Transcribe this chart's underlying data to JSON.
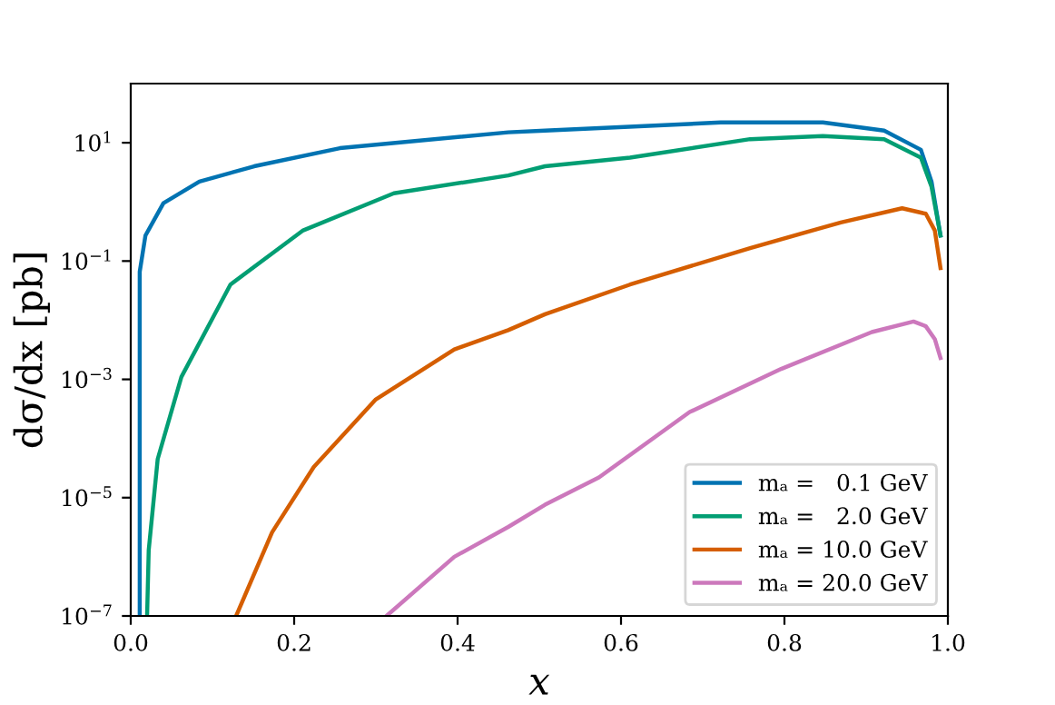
{
  "chart_data": {
    "type": "line",
    "xlabel": "x",
    "ylabel": "dσ/dx [pb]",
    "log": "y",
    "xlim": [
      0.0,
      1.0
    ],
    "xticks": [
      {
        "value": 0.0,
        "label": "0.0"
      },
      0.2,
      0.4,
      0.6,
      0.8,
      {
        "value": 1.0,
        "label": "1.0"
      }
    ],
    "ylim": [
      1e-07,
      100
    ],
    "yticks": [
      {
        "value": 1e-07,
        "label": "10$^{−7}$"
      },
      {
        "value": 1e-05,
        "label": "10$^{−5}$"
      },
      {
        "value": 0.001,
        "label": "10$^{−3}$"
      },
      {
        "value": 0.1,
        "label": "10$^{−1}$"
      },
      {
        "value": 10,
        "label": "10$^{1}$"
      }
    ],
    "grid": false,
    "legend": "bottom right",
    "marker": "none",
    "line_style": "solid",
    "series": [
      {
        "name": "mₐ =   0.1 GeV",
        "color": "#0173b2",
        "x": [
          0.011,
          0.011,
          0.018,
          0.04,
          0.084,
          0.151,
          0.256,
          0.462,
          0.507,
          0.722,
          0.847,
          0.922,
          0.967,
          0.98,
          0.991
        ],
        "values": [
          1e-07,
          0.066,
          0.27,
          0.95,
          2.2,
          4.0,
          8.1,
          15,
          16,
          22,
          22,
          16,
          7.6,
          2.2,
          0.27
        ]
      },
      {
        "name": "mₐ =   2.0 GeV",
        "color": "#029e73",
        "x": [
          0.02,
          0.022,
          0.033,
          0.062,
          0.122,
          0.211,
          0.322,
          0.462,
          0.507,
          0.611,
          0.758,
          0.847,
          0.922,
          0.967,
          0.98,
          0.991
        ],
        "values": [
          1e-07,
          1.3e-06,
          4.5e-05,
          0.0011,
          0.04,
          0.33,
          1.4,
          2.8,
          4.0,
          5.6,
          11.5,
          13,
          11.5,
          5.6,
          1.8,
          0.27
        ]
      },
      {
        "name": "mₐ = 10.0 GeV",
        "color": "#d55e00",
        "x": [
          0.129,
          0.173,
          0.224,
          0.3,
          0.396,
          0.462,
          0.507,
          0.611,
          0.758,
          0.869,
          0.944,
          0.973,
          0.984,
          0.991
        ],
        "values": [
          1e-07,
          2.6e-06,
          3.3e-05,
          0.00046,
          0.0032,
          0.0068,
          0.0126,
          0.04,
          0.166,
          0.45,
          0.78,
          0.63,
          0.33,
          0.076
        ]
      },
      {
        "name": "mₐ = 20.0 GeV",
        "color": "#cc78bc",
        "x": [
          0.313,
          0.396,
          0.462,
          0.507,
          0.573,
          0.684,
          0.796,
          0.907,
          0.958,
          0.973,
          0.984,
          0.991
        ],
        "values": [
          1e-07,
          1e-06,
          3.2e-06,
          7.6e-06,
          2.2e-05,
          0.00028,
          0.0015,
          0.0063,
          0.0095,
          0.0079,
          0.0048,
          0.0023
        ]
      }
    ]
  }
}
